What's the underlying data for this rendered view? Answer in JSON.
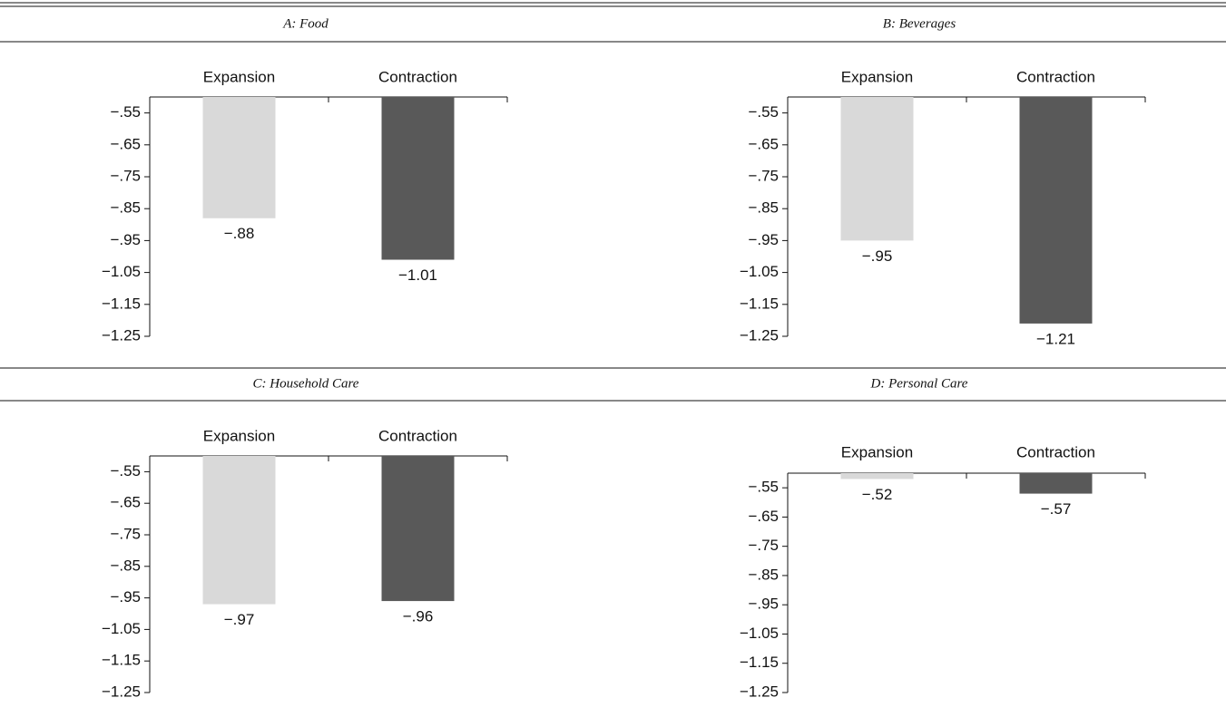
{
  "chart_data": [
    {
      "type": "bar",
      "title": "A: Food",
      "categories": [
        "Expansion",
        "Contraction"
      ],
      "values": [
        -0.88,
        -1.01
      ],
      "value_labels": [
        "−.88",
        "−1.01"
      ],
      "colors": [
        "#d9d9d9",
        "#595959"
      ],
      "ylim": [
        -1.25,
        -0.5
      ],
      "yticks": [
        {
          "value": -0.55,
          "label": "−.55"
        },
        {
          "value": -0.65,
          "label": "−.65"
        },
        {
          "value": -0.75,
          "label": "−.75"
        },
        {
          "value": -0.85,
          "label": "−.85"
        },
        {
          "value": -0.95,
          "label": "−.95"
        },
        {
          "value": -1.05,
          "label": "−1.05"
        },
        {
          "value": -1.15,
          "label": "−1.15"
        },
        {
          "value": -1.25,
          "label": "−1.25"
        }
      ]
    },
    {
      "type": "bar",
      "title": "B: Beverages",
      "categories": [
        "Expansion",
        "Contraction"
      ],
      "values": [
        -0.95,
        -1.21
      ],
      "value_labels": [
        "−.95",
        "−1.21"
      ],
      "colors": [
        "#d9d9d9",
        "#595959"
      ],
      "ylim": [
        -1.25,
        -0.5
      ],
      "yticks": [
        {
          "value": -0.55,
          "label": "−.55"
        },
        {
          "value": -0.65,
          "label": "−.65"
        },
        {
          "value": -0.75,
          "label": "−.75"
        },
        {
          "value": -0.85,
          "label": "−.85"
        },
        {
          "value": -0.95,
          "label": "−.95"
        },
        {
          "value": -1.05,
          "label": "−1.05"
        },
        {
          "value": -1.15,
          "label": "−1.15"
        },
        {
          "value": -1.25,
          "label": "−1.25"
        }
      ]
    },
    {
      "type": "bar",
      "title": "C: Household Care",
      "categories": [
        "Expansion",
        "Contraction"
      ],
      "values": [
        -0.97,
        -0.96
      ],
      "value_labels": [
        "−.97",
        "−.96"
      ],
      "colors": [
        "#d9d9d9",
        "#595959"
      ],
      "ylim": [
        -1.25,
        -0.5
      ],
      "yticks": [
        {
          "value": -0.55,
          "label": "−.55"
        },
        {
          "value": -0.65,
          "label": "−.65"
        },
        {
          "value": -0.75,
          "label": "−.75"
        },
        {
          "value": -0.85,
          "label": "−.85"
        },
        {
          "value": -0.95,
          "label": "−.95"
        },
        {
          "value": -1.05,
          "label": "−1.05"
        },
        {
          "value": -1.15,
          "label": "−1.15"
        },
        {
          "value": -1.25,
          "label": "−1.25"
        }
      ]
    },
    {
      "type": "bar",
      "title": "D: Personal Care",
      "categories": [
        "Expansion",
        "Contraction"
      ],
      "values": [
        -0.52,
        -0.57
      ],
      "value_labels": [
        "−.52",
        "−.57"
      ],
      "colors": [
        "#d9d9d9",
        "#595959"
      ],
      "ylim": [
        -1.25,
        -0.5
      ],
      "yticks": [
        {
          "value": -0.55,
          "label": "−.55"
        },
        {
          "value": -0.65,
          "label": "−.65"
        },
        {
          "value": -0.75,
          "label": "−.75"
        },
        {
          "value": -0.85,
          "label": "−.85"
        },
        {
          "value": -0.95,
          "label": "−.95"
        },
        {
          "value": -1.05,
          "label": "−1.05"
        },
        {
          "value": -1.15,
          "label": "−1.15"
        },
        {
          "value": -1.25,
          "label": "−1.25"
        }
      ]
    }
  ]
}
